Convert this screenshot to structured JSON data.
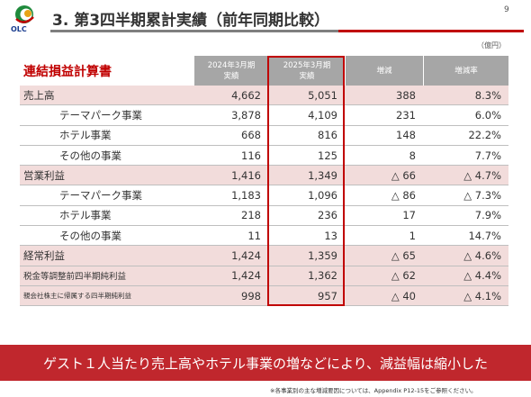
{
  "header": {
    "logo_text": "OLC",
    "title": "3. 第3四半期累計実績（前年同期比較）",
    "page_number": "9"
  },
  "unit": "（億円）",
  "table": {
    "columns": [
      "連結損益計算書",
      "2024年3月期\n実績",
      "2025年3月期\n実績",
      "増減",
      "増減率"
    ],
    "groups": [
      {
        "total": [
          "売上高",
          "4,662",
          "5,051",
          "388",
          "8.3%"
        ],
        "items": [
          [
            "テーマパーク事業",
            "3,878",
            "4,109",
            "231",
            "6.0%"
          ],
          [
            "ホテル事業",
            "668",
            "816",
            "148",
            "22.2%"
          ],
          [
            "その他の事業",
            "116",
            "125",
            "8",
            "7.7%"
          ]
        ]
      },
      {
        "total": [
          "営業利益",
          "1,416",
          "1,349",
          "△ 66",
          "△ 4.7%"
        ],
        "items": [
          [
            "テーマパーク事業",
            "1,183",
            "1,096",
            "△ 86",
            "△ 7.3%"
          ],
          [
            "ホテル事業",
            "218",
            "236",
            "17",
            "7.9%"
          ],
          [
            "その他の事業",
            "11",
            "13",
            "1",
            "14.7%"
          ]
        ]
      },
      {
        "total": [
          "経常利益",
          "1,424",
          "1,359",
          "△ 65",
          "△ 4.6%"
        ],
        "items": []
      },
      {
        "total": [
          "税金等調整前四半期純利益",
          "1,424",
          "1,362",
          "△ 62",
          "△ 4.4%"
        ],
        "items": []
      },
      {
        "total": [
          "親会社株主に帰属する四半期純利益",
          "998",
          "957",
          "△ 40",
          "△ 4.1%"
        ],
        "items": []
      }
    ]
  },
  "banner": "ゲスト１人当たり売上高やホテル事業の増などにより、減益幅は縮小した",
  "footnote": "※各事業別の主な増減要因については、Appendix P12-15をご参照ください。"
}
